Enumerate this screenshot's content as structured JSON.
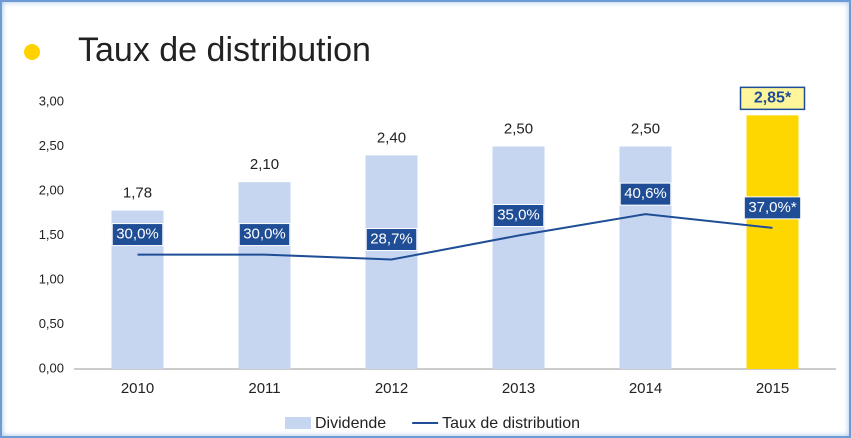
{
  "chart_data": {
    "type": "bar",
    "title": "Taux de distribution",
    "categories": [
      "2010",
      "2011",
      "2012",
      "2013",
      "2014",
      "2015"
    ],
    "series": [
      {
        "name": "Dividende",
        "type": "bar",
        "color": "#c6d6f0",
        "colors": [
          "#c6d6f0",
          "#c6d6f0",
          "#c6d6f0",
          "#c6d6f0",
          "#c6d6f0",
          "#ffd700"
        ],
        "values": [
          1.78,
          2.1,
          2.4,
          2.5,
          2.5,
          2.85
        ],
        "value_labels": [
          "1,78",
          "2,10",
          "2,40",
          "2,50",
          "2,50",
          "2,85*"
        ]
      },
      {
        "name": "Taux de distribution",
        "type": "line",
        "color": "#1f4e96",
        "axis": "y2",
        "values": [
          30.0,
          30.0,
          28.7,
          35.0,
          40.6,
          37.0
        ],
        "value_labels": [
          "30,0%",
          "30,0%",
          "28,7%",
          "35,0%",
          "40,6%",
          "37,0%*"
        ]
      }
    ],
    "ylim": [
      0,
      3
    ],
    "yticks": [
      {
        "value": 0,
        "label": "0,00"
      },
      {
        "value": 0.5,
        "label": "0,50"
      },
      {
        "value": 1,
        "label": "1,00"
      },
      {
        "value": 1.5,
        "label": "1,50"
      },
      {
        "value": 2,
        "label": "2,00"
      },
      {
        "value": 2.5,
        "label": "2,50"
      },
      {
        "value": 3,
        "label": "3,00"
      }
    ],
    "y2lim": [
      0,
      70
    ],
    "legend": "bottom"
  }
}
